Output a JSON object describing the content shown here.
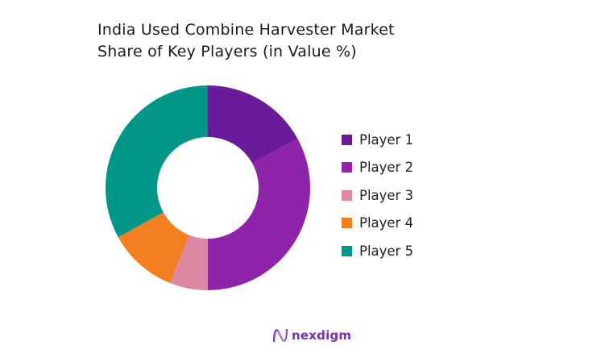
{
  "title": "India Used Combine Harvester Market Share of Key Players (in Value %)",
  "chart_data": {
    "type": "pie",
    "variant": "donut",
    "title": "India Used Combine Harvester Market Share of Key Players (in Value %)",
    "categories": [
      "Player 1",
      "Player 2",
      "Player 3",
      "Player 4",
      "Player 5"
    ],
    "values": [
      17,
      33,
      6,
      11,
      33
    ],
    "colors": [
      "#6a1b9a",
      "#8e24aa",
      "#de87a3",
      "#f47f20",
      "#009688"
    ],
    "legend_position": "right",
    "start_angle": "12 o'clock, clockwise"
  },
  "legend": [
    {
      "label": "Player 1",
      "color": "#6a1b9a"
    },
    {
      "label": "Player 2",
      "color": "#8e24aa"
    },
    {
      "label": "Player 3",
      "color": "#de87a3"
    },
    {
      "label": "Player 4",
      "color": "#f47f20"
    },
    {
      "label": "Player 5",
      "color": "#009688"
    }
  ],
  "logo": {
    "text": "nexdigm"
  }
}
